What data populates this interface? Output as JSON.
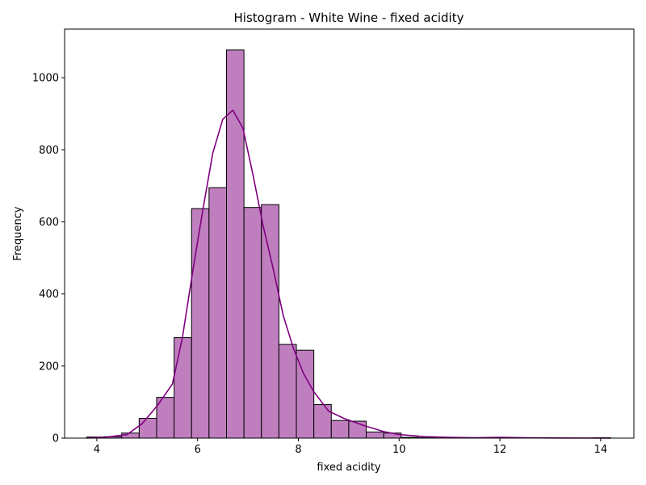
{
  "chart_data": {
    "type": "bar",
    "title": "Histogram - White Wine - fixed acidity",
    "xlabel": "fixed acidity",
    "ylabel": "Frequency",
    "xlim": [
      3.36,
      14.66
    ],
    "ylim": [
      0,
      1135
    ],
    "x_ticks": [
      4,
      6,
      8,
      10,
      12,
      14
    ],
    "y_ticks": [
      0,
      200,
      400,
      600,
      800,
      1000
    ],
    "bin_width": 0.3467,
    "bin_start": 3.8,
    "values": [
      3,
      4,
      14,
      55,
      113,
      279,
      637,
      695,
      1077,
      640,
      648,
      260,
      244,
      93,
      49,
      47,
      17,
      14,
      2,
      1,
      0,
      0,
      1,
      0,
      0,
      0,
      0,
      0,
      0,
      1
    ],
    "bar_color": "#bf7fbf",
    "edge_color": "#000000",
    "kde": {
      "color": "#800080",
      "x": [
        3.8,
        4.2,
        4.6,
        4.9,
        5.2,
        5.5,
        5.7,
        5.9,
        6.1,
        6.3,
        6.5,
        6.7,
        6.9,
        7.1,
        7.3,
        7.5,
        7.7,
        7.9,
        8.1,
        8.3,
        8.6,
        8.9,
        9.3,
        9.7,
        10.0,
        10.5,
        11.0,
        11.5,
        12.0,
        12.5,
        13.0,
        14.2
      ],
      "y": [
        0,
        3,
        10,
        40,
        90,
        150,
        280,
        460,
        630,
        790,
        885,
        910,
        860,
        730,
        590,
        470,
        340,
        250,
        180,
        130,
        75,
        55,
        35,
        18,
        10,
        4,
        2,
        1,
        2,
        1,
        0.5,
        0
      ]
    },
    "grid": false
  }
}
